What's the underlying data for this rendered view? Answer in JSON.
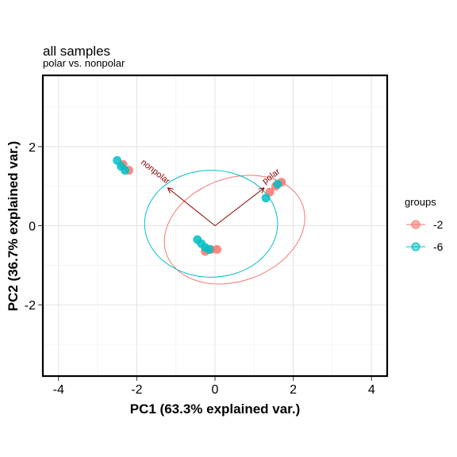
{
  "chart_data": {
    "type": "scatter",
    "title": "all samples",
    "subtitle": "polar vs. nonpolar",
    "xlabel": "PC1 (63.3% explained var.)",
    "ylabel": "PC2 (36.7% explained var.)",
    "xlim": [
      -4.4,
      4.4
    ],
    "ylim": [
      -3.8,
      3.8
    ],
    "x_ticks": [
      -4,
      -2,
      0,
      2,
      4
    ],
    "y_ticks": [
      -2,
      0,
      2
    ],
    "grid": true,
    "legend": {
      "title": "groups",
      "position": "right"
    },
    "series": [
      {
        "name": "-2",
        "color": "#F8766D",
        "points": [
          [
            -2.2,
            1.4
          ],
          [
            -2.35,
            1.55
          ],
          [
            -0.25,
            -0.65
          ],
          [
            -0.1,
            -0.6
          ],
          [
            0.05,
            -0.6
          ],
          [
            1.4,
            0.85
          ],
          [
            1.55,
            1.0
          ],
          [
            1.7,
            1.1
          ]
        ],
        "ellipse": {
          "cx": 0.5,
          "cy": -0.1,
          "rx": 1.85,
          "ry": 1.3,
          "angle_deg": 20
        }
      },
      {
        "name": "-6",
        "color": "#00BFC4",
        "points": [
          [
            -2.5,
            1.65
          ],
          [
            -2.4,
            1.5
          ],
          [
            -2.3,
            1.4
          ],
          [
            -0.45,
            -0.35
          ],
          [
            -0.35,
            -0.45
          ],
          [
            -0.25,
            -0.55
          ],
          [
            -0.15,
            -0.6
          ],
          [
            1.3,
            0.7
          ],
          [
            1.6,
            1.05
          ]
        ],
        "ellipse": {
          "cx": -0.1,
          "cy": 0.05,
          "rx": 1.7,
          "ry": 1.35,
          "angle_deg": 0
        }
      }
    ],
    "loadings": [
      {
        "label": "nonpolar",
        "x": -1.2,
        "y": 0.95
      },
      {
        "label": "polar",
        "x": 1.25,
        "y": 0.95
      }
    ]
  }
}
